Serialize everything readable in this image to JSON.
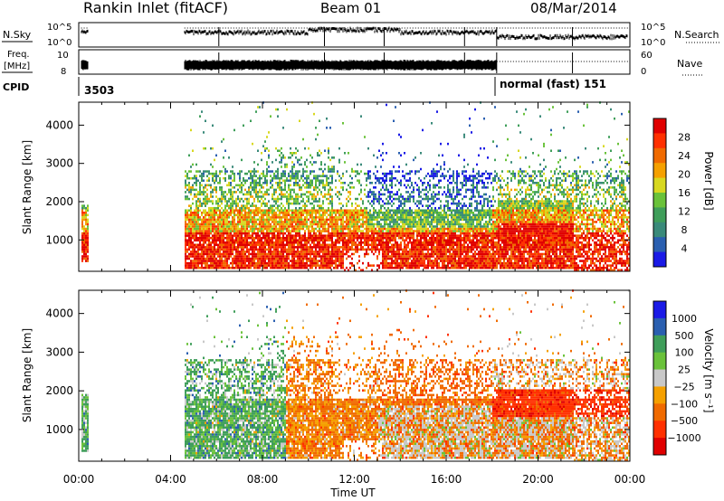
{
  "header": {
    "station": "Rankin Inlet (fitACF)",
    "beam": "Beam 01",
    "date": "08/Mar/2014"
  },
  "strips": {
    "nsky_label": "N.Sky",
    "nsky_ticks": [
      "10^5",
      "10^0"
    ],
    "nsearch_label": "N.Search",
    "nsearch_ticks": [
      "10^5",
      "10^0"
    ],
    "freq_label_1": "Freq.",
    "freq_label_2": "[MHz]",
    "freq_ticks": [
      "10",
      "8"
    ],
    "nave_label": "Nave",
    "nave_ticks": [
      "60",
      "0"
    ],
    "cpid_label": "CPID",
    "cpid_1": "3503",
    "cpid_2": "normal (fast) 151"
  },
  "colors": {
    "power": [
      "#1a1ae6",
      "#2a5fb0",
      "#3a8a7a",
      "#3f9e5a",
      "#6ac23a",
      "#d8d820",
      "#f5a000",
      "#f06a00",
      "#ff3000",
      "#e00000"
    ],
    "velocity": [
      "#e00000",
      "#ff3000",
      "#f06a00",
      "#f5a000",
      "#c8c8c8",
      "#6ac23a",
      "#3f9e5a",
      "#2a5fb0",
      "#1a1ae6"
    ]
  },
  "chart_data": [
    {
      "type": "heatmap",
      "title": "Power",
      "xlabel": "",
      "ylabel": "Slant Range [km]",
      "xlim": [
        "00:00",
        "24:00"
      ],
      "ylim": [
        180,
        4600
      ],
      "x_ticks": [
        "00:00",
        "04:00",
        "08:00",
        "12:00",
        "16:00",
        "20:00",
        "00:00"
      ],
      "y_ticks": [
        1000,
        2000,
        3000,
        4000
      ],
      "colorbar": {
        "label": "Power [dB]",
        "ticks": [
          "4",
          "8",
          "12",
          "16",
          "20",
          "24",
          "28"
        ],
        "range": [
          0,
          30
        ]
      },
      "observed_intervals_hours": [
        [
          0.1,
          0.4
        ],
        [
          4.6,
          24.0
        ]
      ]
    },
    {
      "type": "heatmap",
      "title": "Velocity",
      "xlabel": "Time UT",
      "ylabel": "Slant Range [km]",
      "xlim": [
        "00:00",
        "24:00"
      ],
      "ylim": [
        180,
        4600
      ],
      "x_ticks": [
        "00:00",
        "04:00",
        "08:00",
        "12:00",
        "16:00",
        "20:00",
        "00:00"
      ],
      "y_ticks": [
        1000,
        2000,
        3000,
        4000
      ],
      "colorbar": {
        "label": "Velocity [m s⁻¹]",
        "ticks": [
          "1000",
          "500",
          "100",
          "25",
          "−25",
          "−100",
          "−500",
          "−1000"
        ]
      },
      "observed_intervals_hours": [
        [
          0.1,
          0.4
        ],
        [
          4.6,
          24.0
        ]
      ]
    }
  ]
}
